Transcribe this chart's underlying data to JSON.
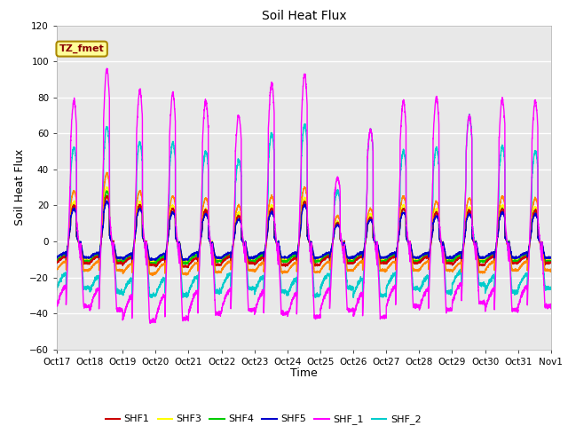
{
  "title": "Soil Heat Flux",
  "xlabel": "Time",
  "ylabel": "Soil Heat Flux",
  "ylim": [
    -60,
    120
  ],
  "yticks": [
    -60,
    -40,
    -20,
    0,
    20,
    40,
    60,
    80,
    100,
    120
  ],
  "xtick_labels": [
    "Oct 17",
    "Oct 18",
    "Oct 19",
    "Oct 20",
    "Oct 21",
    "Oct 22",
    "Oct 23",
    "Oct 24",
    "Oct 25",
    "Oct 26",
    "Oct 27",
    "Oct 28",
    "Oct 29",
    "Oct 30",
    "Oct 31",
    "Nov 1"
  ],
  "series_colors": {
    "SHF1": "#cc0000",
    "SHF2": "#ff8800",
    "SHF3": "#ffff00",
    "SHF4": "#00cc00",
    "SHF5": "#0000cc",
    "SHF_1": "#ff00ff",
    "SHF_2": "#00cccc"
  },
  "annotation_text": "TZ_fmet",
  "annotation_color": "#880000",
  "annotation_bg": "#ffff99",
  "annotation_border": "#aa8800",
  "plot_bg": "#e8e8e8",
  "grid_color": "#ffffff",
  "days": 15,
  "pts_per_day": 288,
  "day_peak_shf1": [
    20,
    25,
    20,
    18,
    17,
    14,
    18,
    22,
    10,
    13,
    18,
    16,
    17,
    18,
    17
  ],
  "day_peak_shf2": [
    28,
    38,
    28,
    25,
    24,
    20,
    25,
    30,
    14,
    18,
    25,
    22,
    24,
    25,
    24
  ],
  "day_peak_shf3": [
    22,
    30,
    22,
    20,
    18,
    16,
    20,
    24,
    11,
    15,
    20,
    18,
    19,
    20,
    19
  ],
  "day_peak_shf4": [
    20,
    28,
    20,
    18,
    17,
    14,
    18,
    22,
    10,
    13,
    18,
    16,
    17,
    18,
    17
  ],
  "day_peak_shf5": [
    18,
    22,
    18,
    16,
    15,
    12,
    16,
    20,
    9,
    12,
    16,
    14,
    15,
    16,
    15
  ],
  "day_peak_shf_1": [
    78,
    96,
    84,
    82,
    78,
    70,
    88,
    93,
    35,
    62,
    78,
    80,
    70,
    79,
    78
  ],
  "day_peak_shf_2": [
    52,
    64,
    55,
    55,
    50,
    45,
    60,
    65,
    28,
    62,
    50,
    52,
    70,
    53,
    50
  ],
  "day_night_shf1": [
    -12,
    -12,
    -13,
    -14,
    -13,
    -12,
    -13,
    -13,
    -12,
    -12,
    -12,
    -12,
    -13,
    -12,
    -12
  ],
  "day_night_shf2": [
    -16,
    -16,
    -18,
    -18,
    -17,
    -16,
    -17,
    -17,
    -16,
    -16,
    -16,
    -16,
    -17,
    -16,
    -16
  ],
  "day_night_shf3": [
    -10,
    -10,
    -11,
    -11,
    -10,
    -10,
    -10,
    -10,
    -10,
    -10,
    -10,
    -10,
    -10,
    -10,
    -10
  ],
  "day_night_shf4": [
    -11,
    -11,
    -12,
    -12,
    -11,
    -11,
    -11,
    -11,
    -11,
    -11,
    -11,
    -11,
    -11,
    -11,
    -11
  ],
  "day_night_shf5": [
    -9,
    -9,
    -10,
    -10,
    -9,
    -9,
    -9,
    -9,
    -9,
    -9,
    -9,
    -9,
    -9,
    -9,
    -9
  ],
  "day_night_shf_1": [
    -36,
    -38,
    -44,
    -43,
    -40,
    -38,
    -40,
    -42,
    -38,
    -42,
    -36,
    -38,
    -34,
    -38,
    -36
  ],
  "day_night_shf_2": [
    -26,
    -28,
    -30,
    -30,
    -28,
    -26,
    -28,
    -30,
    -26,
    -30,
    -26,
    -28,
    -24,
    -28,
    -26
  ]
}
